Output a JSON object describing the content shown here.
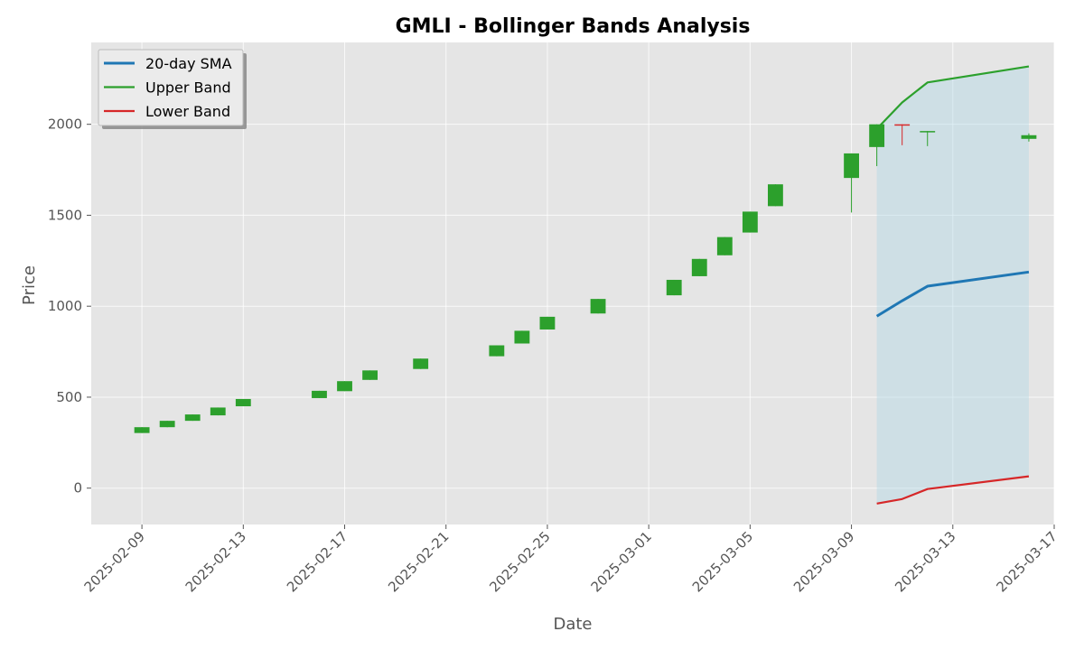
{
  "chart_data": {
    "type": "candlestick",
    "title": "GMLI - Bollinger Bands Analysis",
    "xlabel": "Date",
    "ylabel": "Price",
    "xlim": [
      "2025-02-07",
      "2025-03-17"
    ],
    "ylim": [
      -200,
      2450
    ],
    "x_ticks": [
      "2025-02-09",
      "2025-02-13",
      "2025-02-17",
      "2025-02-21",
      "2025-02-25",
      "2025-03-01",
      "2025-03-05",
      "2025-03-09",
      "2025-03-13",
      "2025-03-17"
    ],
    "y_ticks": [
      0,
      500,
      1000,
      1500,
      2000
    ],
    "grid": true,
    "legend_position": "top-left",
    "colors": {
      "up": "#2ca02c",
      "down": "#d62728",
      "sma": "#1f77b4",
      "upper": "#2ca02c",
      "lower": "#d62728",
      "band_fill": "#add8e6",
      "plot_bg": "#e5e5e5",
      "grid": "#ffffff"
    },
    "candles": [
      {
        "date": "2025-02-09",
        "open": 303,
        "high": 335,
        "low": 303,
        "close": 335
      },
      {
        "date": "2025-02-10",
        "open": 335,
        "high": 370,
        "low": 335,
        "close": 370
      },
      {
        "date": "2025-02-11",
        "open": 370,
        "high": 405,
        "low": 370,
        "close": 405
      },
      {
        "date": "2025-02-12",
        "open": 400,
        "high": 443,
        "low": 400,
        "close": 443
      },
      {
        "date": "2025-02-13",
        "open": 450,
        "high": 490,
        "low": 450,
        "close": 490
      },
      {
        "date": "2025-02-16",
        "open": 495,
        "high": 535,
        "low": 495,
        "close": 535
      },
      {
        "date": "2025-02-17",
        "open": 533,
        "high": 588,
        "low": 533,
        "close": 588
      },
      {
        "date": "2025-02-18",
        "open": 595,
        "high": 647,
        "low": 595,
        "close": 647
      },
      {
        "date": "2025-02-20",
        "open": 655,
        "high": 712,
        "low": 655,
        "close": 712
      },
      {
        "date": "2025-02-23",
        "open": 725,
        "high": 785,
        "low": 725,
        "close": 785
      },
      {
        "date": "2025-02-24",
        "open": 795,
        "high": 865,
        "low": 795,
        "close": 865
      },
      {
        "date": "2025-02-25",
        "open": 872,
        "high": 942,
        "low": 872,
        "close": 942
      },
      {
        "date": "2025-02-27",
        "open": 960,
        "high": 1040,
        "low": 960,
        "close": 1040
      },
      {
        "date": "2025-03-02",
        "open": 1060,
        "high": 1145,
        "low": 1060,
        "close": 1145
      },
      {
        "date": "2025-03-03",
        "open": 1165,
        "high": 1260,
        "low": 1165,
        "close": 1260
      },
      {
        "date": "2025-03-04",
        "open": 1280,
        "high": 1380,
        "low": 1280,
        "close": 1380
      },
      {
        "date": "2025-03-05",
        "open": 1405,
        "high": 1520,
        "low": 1405,
        "close": 1520
      },
      {
        "date": "2025-03-06",
        "open": 1550,
        "high": 1670,
        "low": 1550,
        "close": 1670
      },
      {
        "date": "2025-03-09",
        "open": 1705,
        "high": 1840,
        "low": 1515,
        "close": 1840
      },
      {
        "date": "2025-03-10",
        "open": 1875,
        "high": 2000,
        "low": 1770,
        "close": 2000
      },
      {
        "date": "2025-03-11",
        "open": 2000,
        "high": 2000,
        "low": 1885,
        "close": 1995
      },
      {
        "date": "2025-03-12",
        "open": 1958,
        "high": 1963,
        "low": 1880,
        "close": 1963
      },
      {
        "date": "2025-03-16",
        "open": 1920,
        "high": 1950,
        "low": 1905,
        "close": 1940
      }
    ],
    "series": [
      {
        "name": "20-day SMA",
        "x": [
          "2025-03-10",
          "2025-03-11",
          "2025-03-12",
          "2025-03-16"
        ],
        "values": [
          945,
          1030,
          1110,
          1188
        ]
      },
      {
        "name": "Upper Band",
        "x": [
          "2025-03-10",
          "2025-03-11",
          "2025-03-12",
          "2025-03-16"
        ],
        "values": [
          1975,
          2120,
          2230,
          2318
        ]
      },
      {
        "name": "Lower Band",
        "x": [
          "2025-03-10",
          "2025-03-11",
          "2025-03-12",
          "2025-03-16"
        ],
        "values": [
          -85,
          -60,
          -5,
          65
        ]
      }
    ]
  }
}
